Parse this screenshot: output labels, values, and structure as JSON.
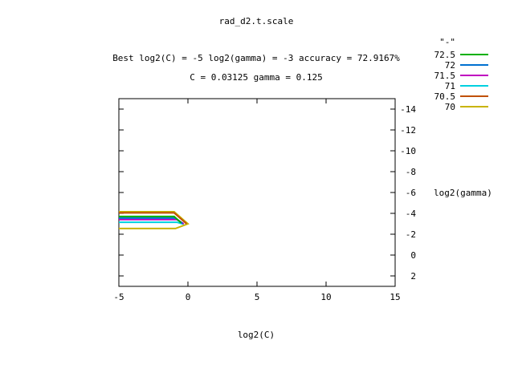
{
  "chart_data": {
    "type": "contour",
    "title": "rad_d2.t.scale",
    "subtitle_1": "Best log2(C) = -5  log2(gamma) = -3  accuracy = 72.9167%",
    "subtitle_2": "C = 0.03125  gamma = 0.125",
    "xlabel": "log2(C)",
    "ylabel": "log2(gamma)",
    "xlim": [
      -5,
      15
    ],
    "ylim": [
      3,
      -15
    ],
    "x_ticks": [
      -5,
      0,
      5,
      10,
      15
    ],
    "y_ticks": [
      -14,
      -12,
      -10,
      -8,
      -6,
      -4,
      -2,
      0,
      2
    ],
    "legend_title": "\"-\"",
    "legend_placement": "top-right, outside plot",
    "grid": false,
    "series": [
      {
        "name": "72.5",
        "color": "#00b000",
        "x": [
          -5,
          -1,
          -0.5
        ],
        "y": [
          -3.7,
          -3.7,
          -3.1
        ]
      },
      {
        "name": "72",
        "color": "#0070d0",
        "x": [
          -5,
          -0.9,
          -0.4
        ],
        "y": [
          -3.55,
          -3.55,
          -3.05
        ]
      },
      {
        "name": "71.5",
        "color": "#c000c0",
        "x": [
          -5,
          -0.8,
          -0.3
        ],
        "y": [
          -3.4,
          -3.4,
          -3.0
        ]
      },
      {
        "name": "71",
        "color": "#00d0e0",
        "x": [
          -5,
          -0.8,
          -0.3
        ],
        "y": [
          -3.15,
          -3.15,
          -2.95
        ]
      },
      {
        "name": "70.5",
        "color": "#c05000",
        "x": [
          -5,
          -1,
          -0.1
        ],
        "y": [
          -4.05,
          -4.05,
          -3.0
        ]
      },
      {
        "name": "70",
        "color": "#c8b400",
        "x": [
          -5,
          -1,
          0,
          -0.9,
          -5
        ],
        "y": [
          -4.15,
          -4.15,
          -3.0,
          -2.55,
          -2.55
        ]
      }
    ]
  }
}
